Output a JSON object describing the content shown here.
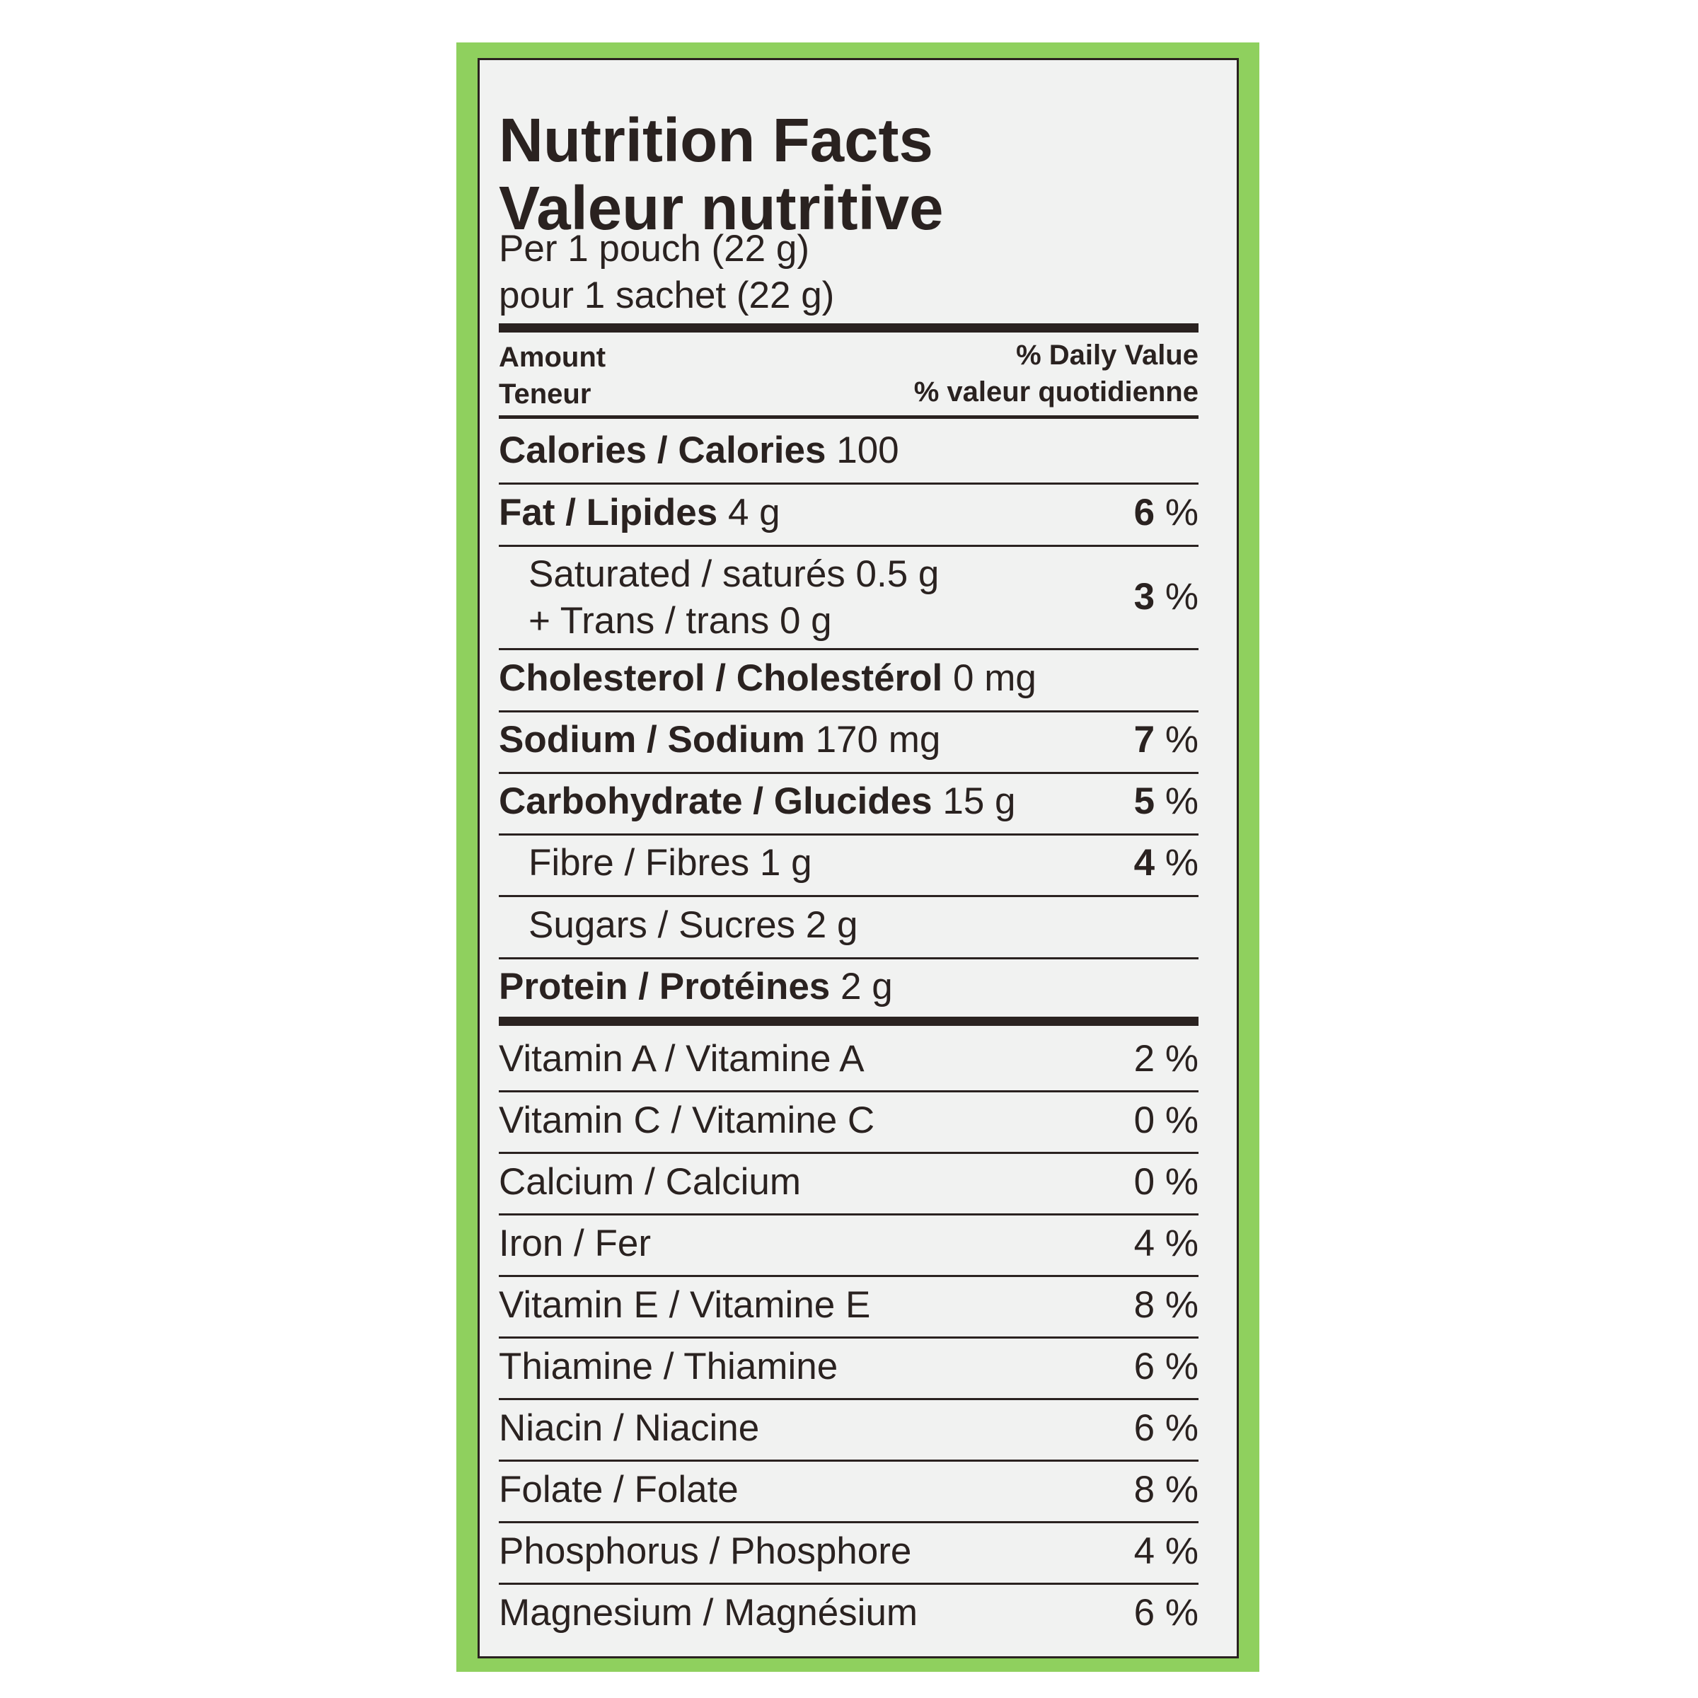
{
  "title_en": "Nutrition Facts",
  "title_fr": "Valeur nutritive",
  "serving_en": "Per 1 pouch (22 g)",
  "serving_fr": "pour 1 sachet (22 g)",
  "header": {
    "amount_en": "Amount",
    "amount_fr": "Teneur",
    "dv_en": "% Daily Value",
    "dv_fr": "% valeur quotidienne"
  },
  "rows": [
    {
      "name": "Calories / Calories",
      "amount": "100",
      "dv_num": "",
      "dv_sym": ""
    },
    {
      "name": "Fat / Lipides",
      "amount": "4 g",
      "dv_num": "6",
      "dv_sym": "%"
    },
    {
      "name": "Saturated / saturés 0.5 g",
      "name2": "+ Trans / trans 0 g",
      "dv_num": "3",
      "dv_sym": "%"
    },
    {
      "name": "Cholesterol / Cholestérol",
      "amount": "0 mg",
      "dv_num": "",
      "dv_sym": ""
    },
    {
      "name": "Sodium / Sodium",
      "amount": "170 mg",
      "dv_num": "7",
      "dv_sym": "%"
    },
    {
      "name": "Carbohydrate / Glucides",
      "amount": "15 g",
      "dv_num": "5",
      "dv_sym": "%"
    },
    {
      "name": "Fibre / Fibres 1 g",
      "dv_num": "4",
      "dv_sym": "%"
    },
    {
      "name": "Sugars / Sucres 2 g",
      "dv_num": "",
      "dv_sym": ""
    },
    {
      "name": "Protein / Protéines",
      "amount": "2 g",
      "dv_num": "",
      "dv_sym": ""
    }
  ],
  "vitamins": [
    {
      "name": "Vitamin A / Vitamine A",
      "dv": "2 %"
    },
    {
      "name": "Vitamin C / Vitamine C",
      "dv": "0 %"
    },
    {
      "name": "Calcium / Calcium",
      "dv": "0 %"
    },
    {
      "name": "Iron / Fer",
      "dv": "4 %"
    },
    {
      "name": "Vitamin E / Vitamine E",
      "dv": "8 %"
    },
    {
      "name": "Thiamine / Thiamine",
      "dv": "6 %"
    },
    {
      "name": "Niacin / Niacine",
      "dv": "6 %"
    },
    {
      "name": "Folate / Folate",
      "dv": "8 %"
    },
    {
      "name": "Phosphorus / Phosphore",
      "dv": "4 %"
    },
    {
      "name": "Magnesium / Magnésium",
      "dv": "6 %"
    }
  ],
  "colors": {
    "frame": "#8fd05e",
    "panel": "#f1f2f1",
    "ink": "#2a2220"
  }
}
